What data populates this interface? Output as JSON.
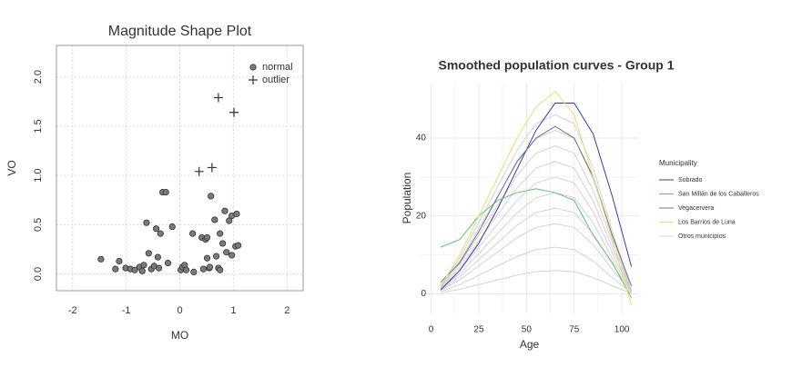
{
  "chart_data": [
    {
      "type": "scatter",
      "title": "Magnitude Shape Plot",
      "x_label": "MO",
      "y_label": "VO",
      "xlim": [
        -2.3,
        2.3
      ],
      "ylim": [
        -0.17,
        2.32
      ],
      "xticks": [
        -2,
        -1,
        0,
        1,
        2
      ],
      "yticks": [
        {
          "value": 0,
          "label": "0.0"
        },
        0.5,
        {
          "value": 1,
          "label": "1.0"
        },
        1.5,
        {
          "value": 2,
          "label": "2.0"
        }
      ],
      "grid": true,
      "legend": "top-right",
      "series": [
        {
          "name": "normal",
          "marker": "circle",
          "color": "#7a7a7a",
          "x": [
            -1.47,
            -1.2,
            -1.13,
            -1.01,
            -0.92,
            -0.84,
            -0.75,
            -0.7,
            -0.67,
            -0.62,
            -0.58,
            -0.53,
            -0.48,
            -0.44,
            -0.41,
            -0.39,
            -0.36,
            -0.32,
            -0.26,
            -0.22,
            -0.14,
            0.02,
            0.05,
            0.09,
            0.12,
            0.24,
            0.26,
            0.41,
            0.44,
            0.48,
            0.51,
            0.51,
            0.55,
            0.56,
            0.58,
            0.65,
            0.68,
            0.72,
            0.75,
            0.75,
            0.8,
            0.84,
            0.87,
            0.92,
            0.97,
            0.97,
            1.04,
            1.06,
            1.09
          ],
          "values": [
            0.15,
            0.05,
            0.13,
            0.06,
            0.05,
            0.04,
            0.07,
            0.03,
            0.09,
            0.52,
            0.21,
            0.05,
            0.08,
            0.46,
            0.17,
            0.06,
            0.41,
            0.83,
            0.83,
            0.11,
            0.48,
            0.04,
            0.07,
            0.09,
            0.04,
            0.41,
            0.02,
            0.37,
            0.05,
            0.35,
            0.37,
            0.16,
            0.06,
            0.07,
            0.79,
            0.55,
            0.18,
            0.06,
            0.04,
            0.41,
            0.31,
            0.64,
            0.22,
            0.54,
            0.59,
            0.19,
            0.28,
            0.61,
            0.29
          ]
        },
        {
          "name": "outlier",
          "marker": "plus",
          "color": "#333333",
          "x": [
            0.36,
            0.6,
            0.72,
            1.01
          ],
          "values": [
            1.04,
            1.08,
            1.79,
            1.64
          ]
        }
      ]
    },
    {
      "type": "line",
      "title": "Smoothed population curves - Group 1",
      "x_label": "Age",
      "y_label": "Population",
      "legend_title": "Municipality",
      "legend": "right",
      "xlim": [
        -6,
        109
      ],
      "ylim": [
        -5,
        54
      ],
      "xticks": [
        0,
        25,
        50,
        75,
        100
      ],
      "yticks": [
        0,
        20,
        40
      ],
      "grid": true,
      "x": [
        5,
        15,
        25,
        35,
        45,
        55,
        65,
        75,
        85,
        95,
        105
      ],
      "series": [
        {
          "name": "Sobrado",
          "color": "#3a3ab0",
          "values": [
            1,
            6,
            13,
            22,
            32,
            42,
            49,
            49,
            41,
            25,
            7
          ]
        },
        {
          "name": "San Millán de los Caballeros",
          "color": "#5cc86a",
          "values": [
            12,
            14,
            20,
            24,
            26,
            27,
            26,
            24,
            15,
            8,
            -1
          ]
        },
        {
          "name": "Vegacervera",
          "color": "#7a6f8f",
          "values": [
            3,
            8,
            16,
            25,
            34,
            40,
            43,
            40,
            30,
            15,
            2
          ]
        },
        {
          "name": "Los Barrios de Luna",
          "color": "#e8df70",
          "values": [
            2,
            10,
            20,
            30,
            40,
            48,
            52,
            46,
            30,
            14,
            -3
          ]
        }
      ],
      "others": {
        "name": "Otros municipios",
        "color": "#cfcfcf",
        "lines": [
          [
            0.3,
            1.2,
            2.4,
            3.6,
            4.8,
            5.7,
            6,
            5.7,
            4.2,
            2.1,
            0.1
          ],
          [
            0.6,
            2.4,
            4.8,
            7.2,
            9.6,
            11.4,
            12,
            11.4,
            8.4,
            4.2,
            0.2
          ],
          [
            0.9,
            3.6,
            7.2,
            10.8,
            14.4,
            17.1,
            18,
            17.1,
            12.6,
            6.3,
            0.4
          ],
          [
            1.1,
            4.4,
            8.8,
            13.2,
            17.6,
            20.9,
            22,
            20.9,
            15.4,
            7.7,
            0.4
          ],
          [
            1.3,
            5.2,
            10.4,
            15.6,
            20.8,
            24.7,
            26,
            24.7,
            18.2,
            9.1,
            0.5
          ],
          [
            1.5,
            6,
            12,
            18,
            24,
            28.5,
            30,
            28.5,
            21,
            10.5,
            0.6
          ],
          [
            1.7,
            6.8,
            13.6,
            20.4,
            27.2,
            32.3,
            34,
            32.3,
            23.8,
            11.9,
            0.7
          ],
          [
            1.9,
            7.6,
            15.2,
            22.8,
            30.4,
            36.1,
            38,
            36.1,
            26.6,
            13.3,
            0.8
          ],
          [
            2.1,
            8.4,
            16.8,
            25.2,
            33.6,
            39.9,
            42,
            39.9,
            29.4,
            14.7,
            0.8
          ],
          [
            2.3,
            9.2,
            18.4,
            27.6,
            36.8,
            43.7,
            46,
            43.7,
            32.2,
            16.1,
            0.9
          ]
        ]
      }
    }
  ]
}
